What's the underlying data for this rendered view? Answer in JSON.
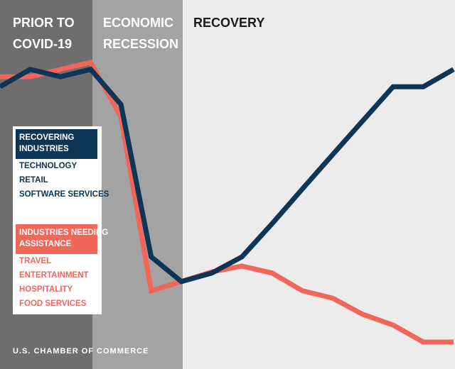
{
  "chart_data": {
    "type": "line",
    "phases": [
      [
        "PRIOR TO",
        "COVID-19"
      ],
      [
        "ECONOMIC",
        "RECESSION"
      ],
      [
        "RECOVERY"
      ]
    ],
    "categories": [
      null,
      null,
      null,
      null,
      null,
      null,
      null,
      null,
      null,
      null,
      null,
      null,
      null,
      null,
      null,
      null
    ],
    "ylim": [
      0,
      100
    ],
    "series": [
      {
        "name": [
          "INDUSTRIES NEEDING",
          "ASSISTANCE"
        ],
        "color": "#f0675a",
        "items": [
          "TRAVEL",
          "ENTERTAINMENT",
          "HOSPITALITY",
          "FOOD SERVICES"
        ],
        "values": [
          79.2,
          79.2,
          81.2,
          83.1,
          68.3,
          21.2,
          23.7,
          26.3,
          27.9,
          26,
          21.2,
          19.2,
          14.8,
          11.9,
          7.3,
          7.3
        ]
      },
      {
        "name": [
          "RECOVERING",
          "INDUSTRIES"
        ],
        "color": "#0d3556",
        "items": [
          "TECHNOLOGY",
          "RETAIL",
          "SOFTWARE SERVICES"
        ],
        "values": [
          76.5,
          81.2,
          79.2,
          81.2,
          71.7,
          30.4,
          23.7,
          26,
          30.4,
          39.4,
          48.8,
          58.1,
          67.3,
          76.5,
          76.5,
          81.2
        ]
      }
    ],
    "source": "U.S. CHAMBER OF COMMERCE"
  }
}
